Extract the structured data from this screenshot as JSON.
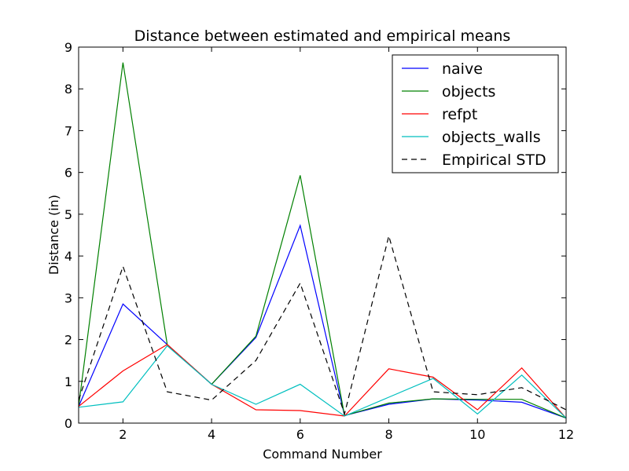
{
  "chart_data": {
    "type": "line",
    "title": "Distance between estimated and empirical means",
    "xlabel": "Command Number",
    "ylabel": "Distance (in)",
    "xlim": [
      1,
      12
    ],
    "ylim": [
      0,
      9
    ],
    "xticks": [
      "2",
      "4",
      "6",
      "8",
      "10",
      "12"
    ],
    "yticks": [
      "0",
      "1",
      "2",
      "3",
      "4",
      "5",
      "6",
      "7",
      "8",
      "9"
    ],
    "grid": false,
    "legend_position": "top-right",
    "x": [
      1,
      2,
      3,
      4,
      5,
      6,
      7,
      8,
      9,
      10,
      11,
      12
    ],
    "series": [
      {
        "name": "naive",
        "color": "#0000ff",
        "dash": "solid",
        "values": [
          0.4,
          2.85,
          1.88,
          0.93,
          2.05,
          4.73,
          0.18,
          0.45,
          0.58,
          0.55,
          0.5,
          0.12
        ]
      },
      {
        "name": "objects",
        "color": "#008000",
        "dash": "solid",
        "values": [
          0.4,
          8.63,
          1.88,
          0.93,
          2.08,
          5.93,
          0.18,
          0.48,
          0.58,
          0.57,
          0.57,
          0.12
        ]
      },
      {
        "name": "refpt",
        "color": "#ff0000",
        "dash": "solid",
        "values": [
          0.4,
          1.25,
          1.88,
          0.93,
          0.32,
          0.3,
          0.17,
          1.3,
          1.1,
          0.32,
          1.32,
          0.12
        ]
      },
      {
        "name": "objects_walls",
        "color": "#00bfbf",
        "dash": "solid",
        "values": [
          0.38,
          0.51,
          1.85,
          0.93,
          0.45,
          0.93,
          0.17,
          0.62,
          1.07,
          0.22,
          1.15,
          0.12
        ]
      },
      {
        "name": "Empirical STD",
        "color": "#000000",
        "dash": "dashed",
        "values": [
          0.55,
          3.75,
          0.75,
          0.55,
          1.5,
          3.35,
          0.22,
          4.48,
          0.75,
          0.68,
          0.85,
          0.32
        ]
      }
    ]
  }
}
